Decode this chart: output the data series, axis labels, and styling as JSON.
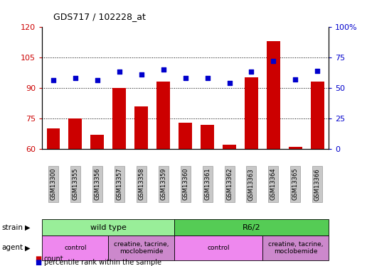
{
  "title": "GDS717 / 102228_at",
  "samples": [
    "GSM13300",
    "GSM13355",
    "GSM13356",
    "GSM13357",
    "GSM13358",
    "GSM13359",
    "GSM13360",
    "GSM13361",
    "GSM13362",
    "GSM13363",
    "GSM13364",
    "GSM13365",
    "GSM13366"
  ],
  "counts": [
    70,
    75,
    67,
    90,
    81,
    93,
    73,
    72,
    62,
    95,
    113,
    61,
    93
  ],
  "percentiles": [
    56,
    58,
    56,
    63,
    61,
    65,
    58,
    58,
    54,
    63,
    72,
    57,
    64
  ],
  "ylim_left": [
    60,
    120
  ],
  "ylim_right": [
    0,
    100
  ],
  "yticks_left": [
    60,
    75,
    90,
    105,
    120
  ],
  "yticks_right": [
    0,
    25,
    50,
    75,
    100
  ],
  "bar_color": "#cc0000",
  "dot_color": "#0000cc",
  "tick_label_bg": "#c8c8c8",
  "strain_groups": [
    {
      "label": "wild type",
      "start": 0,
      "end": 6,
      "color": "#99ee99"
    },
    {
      "label": "R6/2",
      "start": 6,
      "end": 13,
      "color": "#55cc55"
    }
  ],
  "agent_groups": [
    {
      "label": "control",
      "start": 0,
      "end": 3,
      "color": "#ee88ee"
    },
    {
      "label": "creatine, tacrine,\nmoclobemide",
      "start": 3,
      "end": 6,
      "color": "#cc88cc"
    },
    {
      "label": "control",
      "start": 6,
      "end": 10,
      "color": "#ee88ee"
    },
    {
      "label": "creatine, tacrine,\nmoclobemide",
      "start": 10,
      "end": 13,
      "color": "#cc88cc"
    }
  ],
  "strain_label": "strain",
  "agent_label": "agent",
  "legend_count_label": "count",
  "legend_pct_label": "percentile rank within the sample"
}
